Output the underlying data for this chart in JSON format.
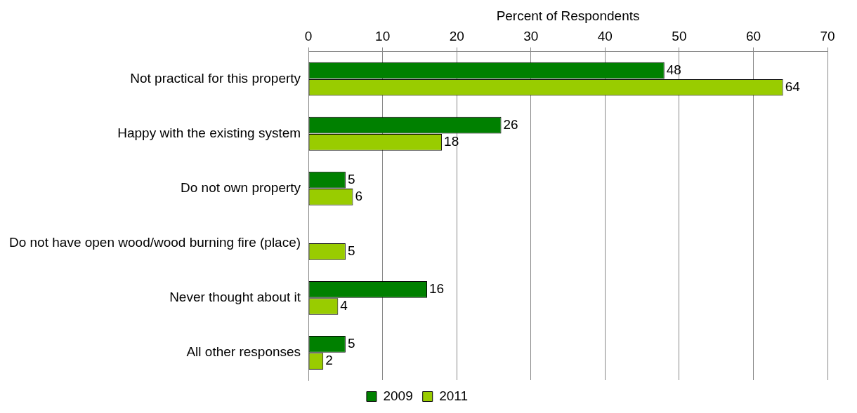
{
  "chart_data": {
    "type": "bar",
    "orientation": "horizontal",
    "xlabel": "Percent of Respondents",
    "categories": [
      "Not practical for this property",
      "Happy with the existing system",
      "Do not own property",
      "Do not have open wood/wood burning fire (place)",
      "Never thought about it",
      "All other responses"
    ],
    "series": [
      {
        "name": "2009",
        "color": "#008000",
        "values": [
          48,
          26,
          5,
          null,
          16,
          5
        ]
      },
      {
        "name": "2011",
        "color": "#99cc00",
        "values": [
          64,
          18,
          6,
          5,
          4,
          2
        ]
      }
    ],
    "xlim": [
      0,
      70
    ],
    "xticks": [
      0,
      10,
      20,
      30,
      40,
      50,
      60,
      70
    ],
    "grid": "x",
    "legend": "bottom",
    "data_labels": true
  }
}
